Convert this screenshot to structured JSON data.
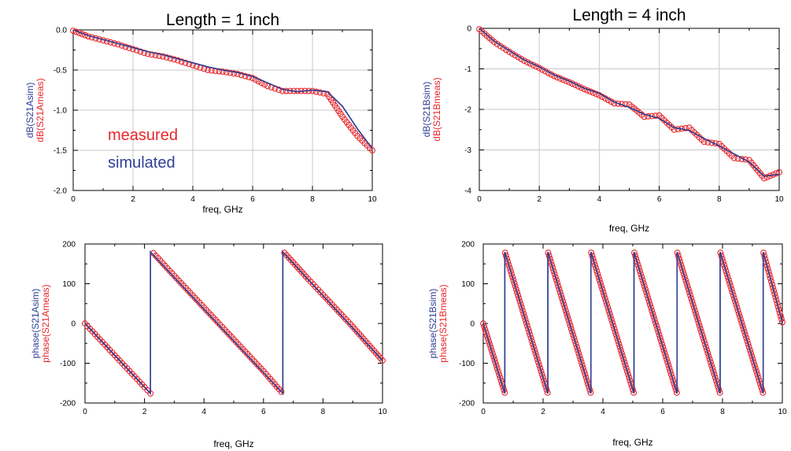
{
  "colors": {
    "measured": "#e8262b",
    "simulated": "#2e3f95",
    "grid": "#c8c8c8",
    "axis": "#000000"
  },
  "chart_data": [
    {
      "id": "tl",
      "type": "scatter",
      "title": "Length = 1 inch",
      "xlabel": "freq, GHz",
      "ylabels": [
        {
          "text": "dB(S21Asim)",
          "role": "simulated"
        },
        {
          "text": "dB(S21Ameas)",
          "role": "measured"
        }
      ],
      "xlim": [
        0,
        10
      ],
      "ylim": [
        -2.0,
        0.0
      ],
      "xticks": [
        0,
        2,
        4,
        6,
        8,
        10
      ],
      "yticks": [
        0.0,
        -0.5,
        -1.0,
        -1.5,
        -2.0
      ],
      "xtick_labels": [
        "0",
        "2",
        "4",
        "6",
        "8",
        "10"
      ],
      "ytick_labels": [
        "0.0",
        "-0.5",
        "-1.0",
        "-1.5",
        "-2.0"
      ],
      "grid": true,
      "legend": {
        "entries": [
          {
            "text": "measured",
            "role": "measured"
          },
          {
            "text": "simulated",
            "role": "simulated"
          }
        ],
        "placement": "inside-lower-left"
      },
      "series": [
        {
          "name": "simulated",
          "style": "line",
          "x": [
            0,
            0.5,
            1,
            1.5,
            2,
            2.5,
            3,
            3.5,
            4,
            4.5,
            5,
            5.5,
            6,
            6.5,
            7,
            7.5,
            8,
            8.5,
            9,
            9.5,
            10
          ],
          "y": [
            0,
            -0.07,
            -0.12,
            -0.17,
            -0.22,
            -0.27,
            -0.31,
            -0.36,
            -0.41,
            -0.46,
            -0.5,
            -0.53,
            -0.58,
            -0.66,
            -0.74,
            -0.77,
            -0.75,
            -0.77,
            -0.95,
            -1.23,
            -1.48
          ]
        },
        {
          "name": "measured",
          "style": "markers",
          "x": [
            0,
            0.5,
            1,
            1.5,
            2,
            2.5,
            3,
            3.5,
            4,
            4.5,
            5,
            5.5,
            6,
            6.5,
            7,
            7.5,
            8,
            8.5,
            9,
            9.5,
            10
          ],
          "y": [
            -0.01,
            -0.08,
            -0.13,
            -0.18,
            -0.24,
            -0.3,
            -0.33,
            -0.38,
            -0.44,
            -0.5,
            -0.52,
            -0.55,
            -0.6,
            -0.7,
            -0.76,
            -0.76,
            -0.76,
            -0.8,
            -1.08,
            -1.32,
            -1.5
          ]
        }
      ]
    },
    {
      "id": "tr",
      "type": "scatter",
      "title": "Length = 4 inch",
      "xlabel": "freq, GHz",
      "ylabels": [
        {
          "text": "dB(S21Bsim)",
          "role": "simulated"
        },
        {
          "text": "dB(S21Bmeas)",
          "role": "measured"
        }
      ],
      "xlim": [
        0,
        10
      ],
      "ylim": [
        -4,
        0
      ],
      "xticks": [
        0,
        2,
        4,
        6,
        8,
        10
      ],
      "yticks": [
        0,
        -1,
        -2,
        -3,
        -4
      ],
      "xtick_labels": [
        "0",
        "2",
        "4",
        "6",
        "8",
        "10"
      ],
      "ytick_labels": [
        "0",
        "-1",
        "-2",
        "-3",
        "-4"
      ],
      "grid": true,
      "series": [
        {
          "name": "simulated",
          "style": "line",
          "x": [
            0,
            0.5,
            1,
            1.5,
            2,
            2.5,
            3,
            3.5,
            4,
            4.5,
            5,
            5.5,
            6,
            6.5,
            7,
            7.5,
            8,
            8.5,
            9,
            9.5,
            10
          ],
          "y": [
            0,
            -0.32,
            -0.55,
            -0.78,
            -0.95,
            -1.15,
            -1.3,
            -1.48,
            -1.6,
            -1.82,
            -1.95,
            -2.12,
            -2.22,
            -2.45,
            -2.52,
            -2.72,
            -2.9,
            -3.1,
            -3.3,
            -3.65,
            -3.6
          ]
        },
        {
          "name": "measured",
          "style": "markers",
          "x": [
            0,
            0.5,
            1,
            1.5,
            2,
            2.5,
            3,
            3.5,
            4,
            4.5,
            5,
            5.5,
            6,
            6.5,
            7,
            7.5,
            8,
            8.5,
            9,
            9.5,
            10
          ],
          "y": [
            -0.02,
            -0.34,
            -0.58,
            -0.8,
            -0.98,
            -1.18,
            -1.33,
            -1.5,
            -1.65,
            -1.85,
            -1.88,
            -2.18,
            -2.15,
            -2.5,
            -2.45,
            -2.8,
            -2.85,
            -3.2,
            -3.25,
            -3.7,
            -3.55
          ]
        }
      ]
    },
    {
      "id": "bl",
      "type": "scatter",
      "title": "",
      "xlabel": "freq, GHz",
      "ylabels": [
        {
          "text": "phase(S21Asim)",
          "role": "simulated"
        },
        {
          "text": "phase(S21Ameas)",
          "role": "measured"
        }
      ],
      "xlim": [
        0,
        10
      ],
      "ylim": [
        -200,
        200
      ],
      "xticks": [
        0,
        2,
        4,
        6,
        8,
        10
      ],
      "yticks": [
        200,
        100,
        0,
        -100,
        -200
      ],
      "xtick_labels": [
        "0",
        "2",
        "4",
        "6",
        "8",
        "10"
      ],
      "ytick_labels": [
        "200",
        "100",
        "0",
        "-100",
        "-200"
      ],
      "grid": false,
      "series": [
        {
          "name": "simulated",
          "style": "line",
          "x": [
            0,
            2.2,
            2.2,
            6.65,
            6.65,
            10
          ],
          "y": [
            0,
            -176,
            180,
            -176,
            180,
            -93
          ]
        },
        {
          "name": "measured",
          "style": "markers",
          "x": [
            0,
            0.5,
            1,
            1.5,
            2,
            2.2,
            2.3,
            3,
            4,
            5,
            6,
            6.6,
            6.7,
            7.5,
            8,
            9,
            10
          ],
          "y": [
            0,
            -40,
            -80,
            -120,
            -160,
            -176,
            177,
            120,
            40,
            -40,
            -120,
            -172,
            178,
            112,
            72,
            -8,
            -93
          ]
        }
      ]
    },
    {
      "id": "br",
      "type": "scatter",
      "title": "",
      "xlabel": "freq, GHz",
      "ylabels": [
        {
          "text": "phase(S21Bsim)",
          "role": "simulated"
        },
        {
          "text": "phase(S21Bmeas)",
          "role": "measured"
        }
      ],
      "xlim": [
        0,
        10
      ],
      "ylim": [
        -200,
        200
      ],
      "xticks": [
        0,
        2,
        4,
        6,
        8,
        10
      ],
      "yticks": [
        200,
        100,
        0,
        -100,
        -200
      ],
      "xtick_labels": [
        "0",
        "2",
        "4",
        "6",
        "8",
        "10"
      ],
      "ytick_labels": [
        "200",
        "100",
        "0",
        "-100",
        "-200"
      ],
      "grid": false,
      "series": [
        {
          "name": "simulated",
          "style": "line",
          "x": [
            0,
            0.72,
            0.72,
            2.16,
            2.16,
            3.6,
            3.6,
            5.04,
            5.04,
            6.48,
            6.48,
            7.92,
            7.92,
            9.36,
            9.36,
            10
          ],
          "y": [
            0,
            -176,
            180,
            -176,
            180,
            -176,
            180,
            -176,
            180,
            -176,
            180,
            -176,
            180,
            -176,
            180,
            3
          ]
        },
        {
          "name": "measured",
          "style": "markers",
          "x": [
            0,
            0.72,
            0.73,
            2.15,
            2.17,
            3.59,
            3.61,
            5.03,
            5.05,
            6.47,
            6.49,
            7.91,
            7.93,
            9.35,
            9.37,
            10
          ],
          "y": [
            0,
            -174,
            178,
            -174,
            178,
            -174,
            178,
            -174,
            178,
            -174,
            178,
            -174,
            178,
            -174,
            178,
            3
          ]
        }
      ]
    }
  ]
}
